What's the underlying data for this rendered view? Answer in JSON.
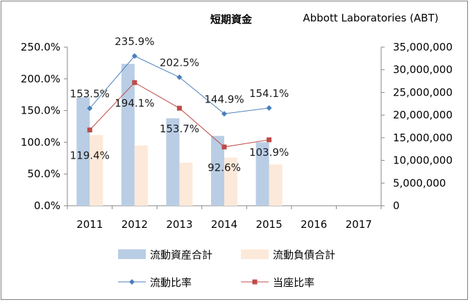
{
  "chart_data": {
    "type": "bar",
    "title": "短期資金",
    "subtitle": "Abbott Laboratories (ABT)",
    "categories": [
      "2011",
      "2012",
      "2013",
      "2014",
      "2015",
      "2016",
      "2017"
    ],
    "left_axis": {
      "ylim": [
        0,
        250
      ],
      "ticks": [
        0,
        50,
        100,
        150,
        200,
        250
      ],
      "tick_labels": [
        "0.0%",
        "50.0%",
        "100.0%",
        "150.0%",
        "200.0%",
        "250.0%"
      ]
    },
    "right_axis": {
      "ylim": [
        0,
        35000000
      ],
      "ticks": [
        0,
        5000000,
        10000000,
        15000000,
        20000000,
        25000000,
        30000000,
        35000000
      ],
      "tick_labels": [
        "0",
        "5,000,000",
        "10,000,000",
        "15,000,000",
        "20,000,000",
        "25,000,000",
        "30,000,000",
        "35,000,000"
      ]
    },
    "series": [
      {
        "name": "流動資産合計",
        "kind": "bar",
        "axis": "right",
        "color": "#b9cde5",
        "values": [
          23900000,
          31300000,
          19300000,
          15400000,
          14000000,
          null,
          null
        ]
      },
      {
        "name": "流動負債合計",
        "kind": "bar",
        "axis": "right",
        "color": "#fde9d9",
        "values": [
          15600000,
          13300000,
          9500000,
          10600000,
          9100000,
          null,
          null
        ]
      },
      {
        "name": "流動比率",
        "kind": "line",
        "axis": "left",
        "color": "#4a7ebb",
        "marker": "diamond",
        "values": [
          153.5,
          235.9,
          202.5,
          144.9,
          154.1,
          null,
          null
        ],
        "labels": [
          "153.5%",
          "235.9%",
          "202.5%",
          "144.9%",
          "154.1%",
          "",
          ""
        ]
      },
      {
        "name": "当座比率",
        "kind": "line",
        "axis": "left",
        "color": "#be4b48",
        "marker": "square",
        "values": [
          119.4,
          194.1,
          153.7,
          92.6,
          103.9,
          null,
          null
        ],
        "labels": [
          "119.4%",
          "194.1%",
          "153.7%",
          "92.6%",
          "103.9%",
          "",
          ""
        ]
      }
    ],
    "legend": {
      "position": "bottom"
    },
    "grid": false
  }
}
